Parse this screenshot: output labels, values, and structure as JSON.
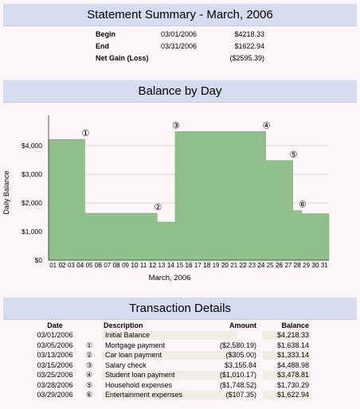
{
  "summary": {
    "title": "Statement Summary - March, 2006",
    "rows": [
      {
        "label": "Begin",
        "date": "03/01/2006",
        "amount": "$4218.33"
      },
      {
        "label": "End",
        "date": "03/31/2006",
        "amount": "$1622.94"
      },
      {
        "label": "Net Gain (Loss)",
        "date": "",
        "amount": "($2595.39)"
      }
    ]
  },
  "chart_section": {
    "title": "Balance by Day"
  },
  "chart_data": {
    "type": "area",
    "title": "",
    "xlabel": "March, 2006",
    "ylabel": "Daily Balance",
    "ylim": [
      0,
      5000
    ],
    "yticks": [
      0,
      1000,
      2000,
      3000,
      4000
    ],
    "ytick_labels": [
      "$0",
      "$1,000",
      "$2,000",
      "$3,000",
      "$4,000"
    ],
    "grid": true,
    "color": "#8fbf8a",
    "x": [
      "01",
      "02",
      "03",
      "04",
      "05",
      "06",
      "07",
      "08",
      "09",
      "10",
      "11",
      "12",
      "13",
      "14",
      "15",
      "16",
      "17",
      "18",
      "19",
      "20",
      "21",
      "22",
      "23",
      "24",
      "25",
      "26",
      "27",
      "28",
      "29",
      "30",
      "31"
    ],
    "values": [
      4218.33,
      4218.33,
      4218.33,
      4218.33,
      1638.14,
      1638.14,
      1638.14,
      1638.14,
      1638.14,
      1638.14,
      1638.14,
      1638.14,
      1333.14,
      1333.14,
      4488.98,
      4488.98,
      4488.98,
      4488.98,
      4488.98,
      4488.98,
      4488.98,
      4488.98,
      4488.98,
      4488.98,
      3478.81,
      3478.81,
      3478.81,
      1730.29,
      1622.94,
      1622.94,
      1622.94
    ],
    "markers": [
      {
        "label": "①",
        "day": 5
      },
      {
        "label": "②",
        "day": 13
      },
      {
        "label": "③",
        "day": 15
      },
      {
        "label": "④",
        "day": 25
      },
      {
        "label": "⑤",
        "day": 28
      },
      {
        "label": "⑥",
        "day": 29
      }
    ]
  },
  "transactions": {
    "title": "Transaction Details",
    "headers": {
      "date": "Date",
      "description": "Description",
      "amount": "Amount",
      "balance": "Balance"
    },
    "rows": [
      {
        "date": "03/01/2006",
        "ref": "",
        "description": "Initial Balance",
        "amount": "",
        "balance": "$4,218.33"
      },
      {
        "date": "03/05/2006",
        "ref": "①",
        "description": "Mortgage payment",
        "amount": "($2,580.19)",
        "balance": "$1,638.14"
      },
      {
        "date": "03/13/2006",
        "ref": "②",
        "description": "Car loan payment",
        "amount": "($305.00)",
        "balance": "$1,333.14"
      },
      {
        "date": "03/15/2006",
        "ref": "③",
        "description": "Salary check",
        "amount": "$3,155.84",
        "balance": "$4,488.98"
      },
      {
        "date": "03/25/2006",
        "ref": "④",
        "description": "Student loan payment",
        "amount": "($1,010.17)",
        "balance": "$3,478.81"
      },
      {
        "date": "03/28/2006",
        "ref": "⑤",
        "description": "Household expenses",
        "amount": "($1,748.52)",
        "balance": "$1,730.29"
      },
      {
        "date": "03/29/2006",
        "ref": "⑥",
        "description": "Entertainment expenses",
        "amount": "($107.35)",
        "balance": "$1,622.94"
      }
    ]
  }
}
